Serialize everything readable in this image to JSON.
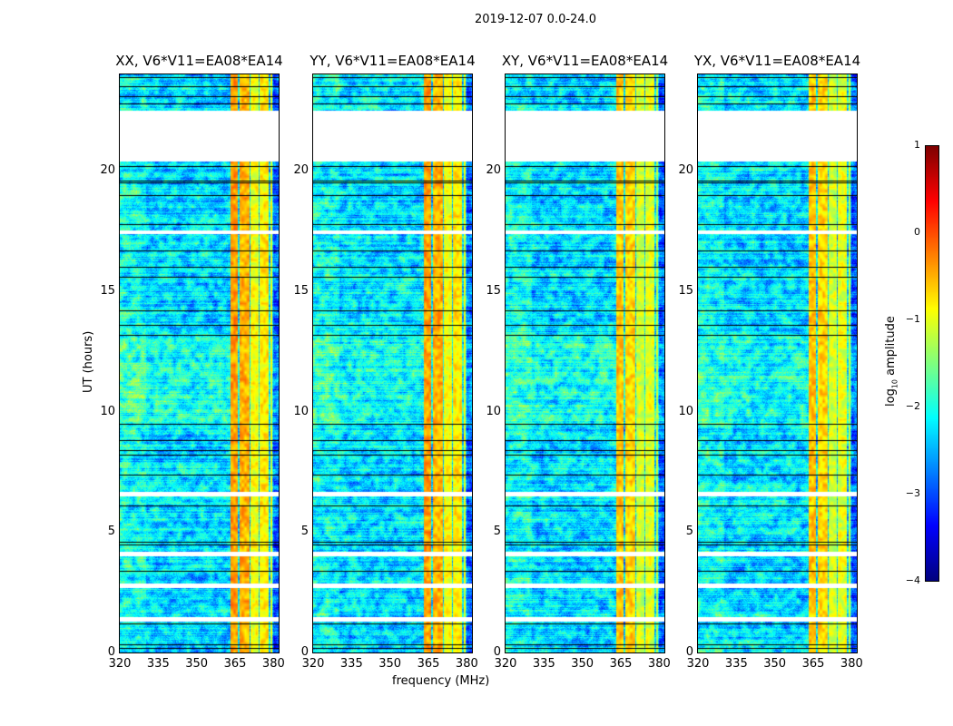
{
  "chart_data": {
    "type": "heatmap",
    "suptitle": "2019-12-07 0.0-24.0",
    "xlabel": "frequency (MHz)",
    "ylabel": "UT (hours)",
    "xlim": [
      320,
      382
    ],
    "ylim": [
      0,
      24
    ],
    "xticks": [
      "320",
      "335",
      "350",
      "365",
      "380"
    ],
    "xtick_values": [
      320,
      335,
      350,
      365,
      380
    ],
    "yticks": [
      "0",
      "5",
      "10",
      "15",
      "20"
    ],
    "ytick_values": [
      0,
      5,
      10,
      15,
      20
    ],
    "panels": [
      {
        "title": "XX, V6*V11=EA08*EA14"
      },
      {
        "title": "YY, V6*V11=EA08*EA14"
      },
      {
        "title": "XY, V6*V11=EA08*EA14"
      },
      {
        "title": "YX, V6*V11=EA08*EA14"
      }
    ],
    "background_log10_amplitude": -2.3,
    "rfi_bands_mhz": [
      {
        "range": [
          363,
          366
        ],
        "log10_amplitude": -0.4
      },
      {
        "range": [
          366.5,
          370.5
        ],
        "log10_amplitude": -0.5
      },
      {
        "range": [
          371,
          374
        ],
        "log10_amplitude": -0.9
      },
      {
        "range": [
          374.5,
          378
        ],
        "log10_amplitude": -0.8
      },
      {
        "range": [
          378.5,
          379.5
        ],
        "log10_amplitude": -1.0
      }
    ],
    "data_gaps_hours": [
      [
        20.4,
        22.5
      ],
      [
        17.4,
        17.55
      ],
      [
        6.5,
        6.7
      ],
      [
        4.0,
        4.2
      ],
      [
        2.7,
        2.9
      ],
      [
        1.3,
        1.5
      ]
    ],
    "flagged_lines_hours": [
      0.2,
      0.35,
      1.2,
      3.4,
      4.5,
      4.6,
      6.1,
      7.4,
      8.2,
      8.4,
      8.8,
      9.5,
      13.2,
      13.6,
      14.2,
      15.6,
      16.0,
      16.7,
      17.8,
      19.0,
      19.5,
      19.6,
      20.2,
      22.8,
      23.1,
      23.5,
      23.9
    ],
    "colorbar": {
      "label_main": "log",
      "label_sub": "10",
      "label_rest": " amplitude",
      "range": [
        -4,
        1
      ],
      "colormap": "jet",
      "ticks": [
        "1",
        "0",
        "−1",
        "−2",
        "−3",
        "−4"
      ],
      "tick_values": [
        1,
        0,
        -1,
        -2,
        -3,
        -4
      ]
    }
  }
}
